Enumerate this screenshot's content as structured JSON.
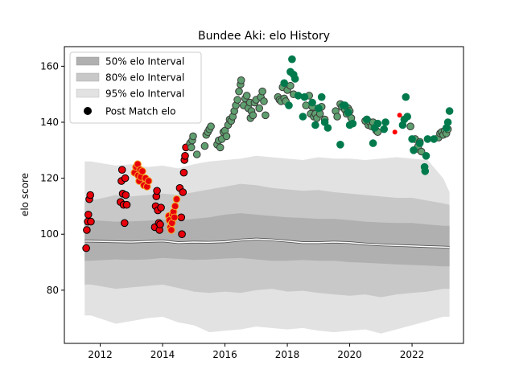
{
  "chart_data": {
    "type": "scatter",
    "title": "Bundee Aki: elo History",
    "xlabel": "",
    "ylabel": "elo score",
    "xlim": [
      2010.85,
      2023.65
    ],
    "ylim": [
      61,
      167
    ],
    "x_ticks": [
      2012,
      2014,
      2016,
      2018,
      2020,
      2022
    ],
    "y_ticks": [
      80,
      100,
      120,
      140,
      160
    ],
    "grid": false,
    "legend_position": "top-left",
    "legend": [
      {
        "label": "50% elo Interval",
        "kind": "band",
        "color": "#b0b0b0"
      },
      {
        "label": "80% elo Interval",
        "kind": "band",
        "color": "#c8c8c8"
      },
      {
        "label": "95% elo Interval",
        "kind": "band",
        "color": "#e2e2e2"
      },
      {
        "label": "Post Match elo",
        "kind": "marker",
        "color": "#000000"
      }
    ],
    "bands": {
      "x": [
        2011.5,
        2011.7,
        2012.5,
        2013.0,
        2013.5,
        2014.0,
        2014.5,
        2015.0,
        2015.5,
        2016.0,
        2016.5,
        2017.0,
        2017.5,
        2018.0,
        2018.5,
        2019.0,
        2019.5,
        2020.0,
        2020.5,
        2021.0,
        2021.5,
        2022.0,
        2022.5,
        2023.0,
        2023.2
      ],
      "median": [
        97.5,
        97.5,
        97.3,
        97.2,
        97.4,
        97.6,
        97.0,
        97.2,
        97.1,
        97.3,
        97.9,
        98.3,
        98.0,
        97.5,
        97.0,
        97.0,
        97.2,
        97.0,
        96.5,
        96.2,
        96.0,
        95.8,
        95.6,
        95.4,
        95.3
      ],
      "p25": [
        90.5,
        90.5,
        91.0,
        90.8,
        91.0,
        91.5,
        91.2,
        90.8,
        91.0,
        91.3,
        91.5,
        91.0,
        90.5,
        90.5,
        90.8,
        90.5,
        90.5,
        90.0,
        89.8,
        89.5,
        89.2,
        89.0,
        88.8,
        88.5,
        88.5
      ],
      "p75": [
        105.0,
        105.0,
        104.5,
        104.6,
        104.8,
        105.2,
        104.8,
        105.5,
        106.0,
        107.0,
        107.5,
        107.0,
        106.5,
        106.0,
        105.8,
        105.5,
        105.5,
        105.0,
        104.5,
        104.2,
        104.0,
        104.0,
        103.5,
        103.0,
        103.0
      ],
      "p10": [
        82.0,
        82.0,
        80.5,
        81.0,
        81.5,
        82.0,
        80.8,
        79.5,
        79.0,
        79.5,
        79.0,
        80.0,
        80.5,
        79.5,
        79.8,
        79.0,
        78.5,
        78.0,
        78.5,
        77.5,
        78.5,
        79.0,
        79.5,
        80.5,
        80.5
      ],
      "p90": [
        112.0,
        112.0,
        114.0,
        113.5,
        114.0,
        114.5,
        114.0,
        115.0,
        116.0,
        117.0,
        118.0,
        117.5,
        116.5,
        116.0,
        115.5,
        115.8,
        115.0,
        114.5,
        114.0,
        113.5,
        113.0,
        113.0,
        112.0,
        111.0,
        110.5
      ],
      "p2_5": [
        71.0,
        71.0,
        68.0,
        69.0,
        70.0,
        70.5,
        68.5,
        67.5,
        65.0,
        65.5,
        66.0,
        67.0,
        66.5,
        66.0,
        66.5,
        65.5,
        65.0,
        65.5,
        66.0,
        64.5,
        66.0,
        67.5,
        69.0,
        70.5,
        70.5
      ],
      "p97_5": [
        126.0,
        126.0,
        124.5,
        125.0,
        124.0,
        124.5,
        123.5,
        125.0,
        126.0,
        126.5,
        127.0,
        128.0,
        127.5,
        127.0,
        126.5,
        127.5,
        127.0,
        127.0,
        126.5,
        127.0,
        127.5,
        127.0,
        126.5,
        120.0,
        115.0
      ]
    },
    "series": [
      {
        "marker_fill": "#e8000b",
        "marker_edge": "#000000",
        "points": [
          [
            2011.55,
            95
          ],
          [
            2011.57,
            101.5
          ],
          [
            2011.6,
            104.5
          ],
          [
            2011.62,
            107
          ],
          [
            2011.65,
            112.5
          ],
          [
            2011.68,
            114
          ],
          [
            2011.7,
            104.5
          ],
          [
            2012.65,
            111.5
          ],
          [
            2012.68,
            119
          ],
          [
            2012.7,
            123
          ],
          [
            2012.72,
            114.5
          ],
          [
            2012.75,
            110.5
          ],
          [
            2012.78,
            104
          ],
          [
            2012.8,
            120
          ],
          [
            2012.82,
            114
          ],
          [
            2012.85,
            110.5
          ],
          [
            2013.75,
            102.5
          ],
          [
            2013.78,
            110
          ],
          [
            2013.8,
            113.5
          ],
          [
            2013.82,
            115.5
          ],
          [
            2013.85,
            108.5
          ],
          [
            2013.88,
            104
          ],
          [
            2013.9,
            101.5
          ],
          [
            2013.92,
            103.5
          ],
          [
            2013.95,
            109.5
          ],
          [
            2014.55,
            116.5
          ],
          [
            2014.6,
            106
          ],
          [
            2014.62,
            100
          ],
          [
            2014.65,
            115
          ],
          [
            2014.68,
            122
          ],
          [
            2014.7,
            126.5
          ],
          [
            2014.72,
            128
          ],
          [
            2014.75,
            131
          ]
        ]
      },
      {
        "marker_fill": "#e8000b",
        "marker_edge": "#f5a623",
        "points": [
          [
            2013.1,
            122
          ],
          [
            2013.15,
            124
          ],
          [
            2013.2,
            125
          ],
          [
            2013.22,
            121
          ],
          [
            2013.25,
            119
          ],
          [
            2013.28,
            123
          ],
          [
            2013.3,
            120.5
          ],
          [
            2013.35,
            122.5
          ],
          [
            2013.4,
            117.5
          ],
          [
            2013.45,
            120
          ],
          [
            2013.5,
            117
          ],
          [
            2013.55,
            119
          ],
          [
            2014.2,
            106.5
          ],
          [
            2014.22,
            105
          ],
          [
            2014.25,
            102.5
          ],
          [
            2014.28,
            101.5
          ],
          [
            2014.3,
            104
          ],
          [
            2014.32,
            107
          ],
          [
            2014.35,
            108
          ],
          [
            2014.38,
            106
          ],
          [
            2014.4,
            110
          ],
          [
            2014.45,
            112.5
          ]
        ]
      },
      {
        "marker_fill": "#5f9e6e",
        "marker_edge": "#3a3a3a",
        "points": [
          [
            2014.88,
            132.5
          ],
          [
            2014.92,
            131
          ],
          [
            2014.95,
            133.5
          ],
          [
            2014.98,
            135
          ],
          [
            2015.1,
            128.5
          ],
          [
            2015.35,
            131.5
          ],
          [
            2015.4,
            135.5
          ],
          [
            2015.45,
            136.5
          ],
          [
            2015.5,
            137.5
          ],
          [
            2015.55,
            138.5
          ],
          [
            2015.75,
            132
          ],
          [
            2015.8,
            133.5
          ],
          [
            2015.85,
            131
          ],
          [
            2015.9,
            134
          ],
          [
            2015.95,
            136.5
          ],
          [
            2016.0,
            137
          ],
          [
            2016.05,
            135
          ],
          [
            2016.1,
            139
          ],
          [
            2016.15,
            141
          ],
          [
            2016.2,
            140.5
          ],
          [
            2016.25,
            142
          ],
          [
            2016.3,
            144
          ],
          [
            2016.35,
            146
          ],
          [
            2016.4,
            148
          ],
          [
            2016.45,
            151
          ],
          [
            2016.5,
            153.5
          ],
          [
            2016.52,
            155
          ],
          [
            2016.6,
            146
          ],
          [
            2016.65,
            148.5
          ],
          [
            2016.7,
            149.5
          ],
          [
            2016.75,
            145
          ],
          [
            2016.8,
            147
          ],
          [
            2016.82,
            141.5
          ],
          [
            2016.85,
            144
          ],
          [
            2016.9,
            142.5
          ],
          [
            2016.95,
            147
          ],
          [
            2017.0,
            148
          ],
          [
            2017.1,
            145
          ],
          [
            2017.15,
            149
          ],
          [
            2017.2,
            151
          ],
          [
            2017.25,
            147.5
          ],
          [
            2017.3,
            142.5
          ],
          [
            2017.7,
            149
          ],
          [
            2017.75,
            148
          ],
          [
            2017.8,
            147.5
          ],
          [
            2017.85,
            152.5
          ],
          [
            2017.9,
            148.5
          ],
          [
            2017.95,
            147.5
          ],
          [
            2018.0,
            151.5
          ],
          [
            2018.1,
            153
          ],
          [
            2018.2,
            150
          ],
          [
            2018.6,
            146
          ],
          [
            2018.7,
            149.5
          ],
          [
            2018.75,
            143
          ],
          [
            2018.8,
            145.5
          ],
          [
            2018.85,
            142
          ],
          [
            2018.9,
            143
          ],
          [
            2018.95,
            141.5
          ],
          [
            2019.05,
            143
          ],
          [
            2019.1,
            145.5
          ],
          [
            2019.2,
            141
          ],
          [
            2019.55,
            144
          ],
          [
            2019.6,
            142
          ],
          [
            2019.7,
            146.5
          ],
          [
            2019.75,
            145.5
          ],
          [
            2019.8,
            146
          ],
          [
            2019.85,
            144.5
          ],
          [
            2019.9,
            143
          ],
          [
            2019.95,
            145
          ],
          [
            2020.0,
            144
          ],
          [
            2020.05,
            141.5
          ],
          [
            2020.5,
            140.5
          ],
          [
            2020.55,
            141
          ],
          [
            2020.6,
            139
          ],
          [
            2020.65,
            140
          ],
          [
            2020.7,
            138.5
          ],
          [
            2020.75,
            140
          ],
          [
            2020.8,
            138
          ],
          [
            2020.85,
            137
          ],
          [
            2020.9,
            136.5
          ],
          [
            2021.95,
            138.5
          ],
          [
            2022.1,
            134
          ],
          [
            2022.15,
            130.5
          ],
          [
            2022.2,
            131.5
          ],
          [
            2022.25,
            133
          ],
          [
            2022.3,
            129.5
          ],
          [
            2022.85,
            134.5
          ],
          [
            2022.9,
            136
          ],
          [
            2022.95,
            136.5
          ],
          [
            2023.0,
            135.5
          ],
          [
            2023.05,
            137
          ],
          [
            2023.1,
            136
          ],
          [
            2023.15,
            137.5
          ]
        ]
      },
      {
        "marker_fill": "#007a4d",
        "marker_edge": "#007a4d",
        "points": [
          [
            2017.9,
            154
          ],
          [
            2018.1,
            158
          ],
          [
            2018.15,
            162.5
          ],
          [
            2018.2,
            157
          ],
          [
            2018.25,
            155.5
          ],
          [
            2018.05,
            146
          ],
          [
            2018.35,
            149.5
          ],
          [
            2018.5,
            142
          ],
          [
            2018.55,
            149
          ],
          [
            2018.8,
            147
          ],
          [
            2018.9,
            139
          ],
          [
            2019.0,
            145
          ],
          [
            2019.1,
            149
          ],
          [
            2019.2,
            140
          ],
          [
            2019.3,
            138
          ],
          [
            2019.7,
            132
          ],
          [
            2019.8,
            146
          ],
          [
            2019.85,
            146
          ],
          [
            2019.95,
            143.5
          ],
          [
            2020.0,
            139
          ],
          [
            2020.1,
            139.5
          ],
          [
            2020.55,
            141
          ],
          [
            2020.75,
            132.5
          ],
          [
            2020.8,
            138
          ],
          [
            2020.9,
            139.5
          ],
          [
            2021.1,
            137.5
          ],
          [
            2021.15,
            140
          ],
          [
            2021.7,
            139
          ],
          [
            2021.75,
            141
          ],
          [
            2021.8,
            149
          ],
          [
            2021.85,
            142
          ],
          [
            2022.0,
            134
          ],
          [
            2022.05,
            130
          ],
          [
            2022.25,
            132.5
          ],
          [
            2022.4,
            124
          ],
          [
            2022.42,
            122.5
          ],
          [
            2022.45,
            128
          ],
          [
            2022.5,
            134
          ],
          [
            2022.7,
            134
          ],
          [
            2023.1,
            138
          ],
          [
            2023.15,
            140
          ],
          [
            2023.2,
            144
          ]
        ]
      },
      {
        "marker_fill": "#ff0000",
        "marker_edge": "#ff0000",
        "small": true,
        "points": [
          [
            2021.45,
            136.5
          ],
          [
            2021.6,
            142.5
          ]
        ]
      }
    ]
  }
}
